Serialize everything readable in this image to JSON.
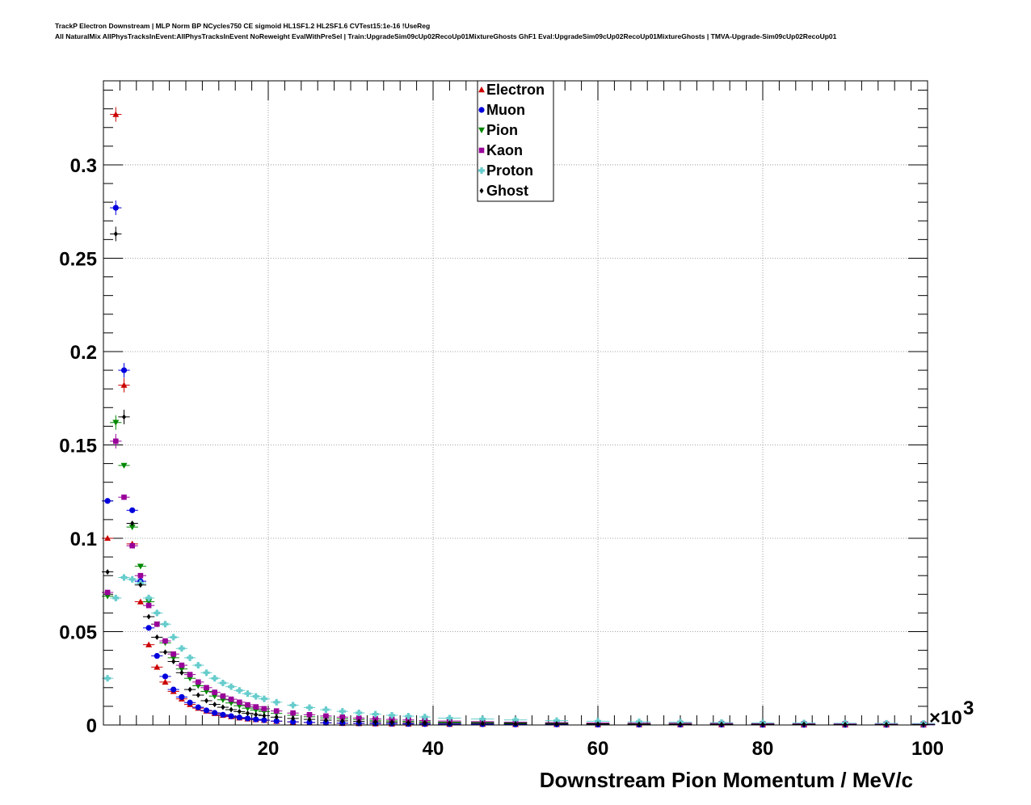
{
  "chart_data": {
    "type": "scatter",
    "title_lines": [
      "TrackP Electron Downstream | MLP Norm BP NCycles750 CE sigmoid HL1SF1.2 HL2SF1.6 CVTest15:1e-16 !UseReg",
      "All NaturalMix AllPhysTracksInEvent:AllPhysTracksInEvent NoReweight EvalWithPreSel | Train:UpgradeSim09cUp02RecoUp01MixtureGhosts GhF1 Eval:UpgradeSim09cUp02RecoUp01MixtureGhosts | TMVA-Upgrade-Sim09cUp02RecoUp01"
    ],
    "xlabel": "Downstream Pion Momentum / MeV/c",
    "ylabel": "",
    "x_multiplier": "×10",
    "x_multiplier_exp": "3",
    "xlim": [
      0,
      100
    ],
    "ylim": [
      0,
      0.345
    ],
    "x_ticks": [
      {
        "value": 20,
        "label": "20"
      },
      {
        "value": 40,
        "label": "40"
      },
      {
        "value": 60,
        "label": "60"
      },
      {
        "value": 80,
        "label": "80"
      },
      {
        "value": 100,
        "label": "100"
      }
    ],
    "y_ticks": [
      {
        "value": 0,
        "label": "0"
      },
      {
        "value": 0.05,
        "label": "0.05"
      },
      {
        "value": 0.1,
        "label": "0.1"
      },
      {
        "value": 0.15,
        "label": "0.15"
      },
      {
        "value": 0.2,
        "label": "0.2"
      },
      {
        "value": 0.25,
        "label": "0.25"
      },
      {
        "value": 0.3,
        "label": "0.3"
      }
    ],
    "grid": true,
    "legend_position": "top-center",
    "series": [
      {
        "name": "Electron",
        "color": "#cc0000",
        "marker": "triangle-up",
        "x": [
          0.5,
          1.5,
          2.5,
          3.5,
          4.5,
          5.5,
          6.5,
          7.5,
          8.5,
          9.5,
          10.5,
          11.5,
          12.5,
          13.5,
          14.5,
          15.5,
          16.5,
          17.5,
          18.5,
          19.5,
          21,
          23,
          25,
          27,
          29,
          31,
          33,
          35,
          37,
          39,
          42,
          46,
          50,
          55,
          60,
          65,
          70,
          75,
          80,
          85,
          90,
          95,
          99.5
        ],
        "y": [
          0.1,
          0.327,
          0.182,
          0.097,
          0.066,
          0.043,
          0.031,
          0.023,
          0.018,
          0.014,
          0.011,
          0.009,
          0.0075,
          0.0062,
          0.0052,
          0.0045,
          0.0038,
          0.0033,
          0.0029,
          0.0025,
          0.002,
          0.0016,
          0.0013,
          0.0011,
          0.0009,
          0.0008,
          0.0007,
          0.0006,
          0.0005,
          0.0005,
          0.0004,
          0.0004,
          0.0003,
          0.0003,
          0.0002,
          0.0002,
          0.0002,
          0.0002,
          0.0001,
          0.0001,
          0.0001,
          0.0001,
          0.0001
        ]
      },
      {
        "name": "Muon",
        "color": "#0000dd",
        "marker": "circle",
        "x": [
          0.5,
          1.5,
          2.5,
          3.5,
          4.5,
          5.5,
          6.5,
          7.5,
          8.5,
          9.5,
          10.5,
          11.5,
          12.5,
          13.5,
          14.5,
          15.5,
          16.5,
          17.5,
          18.5,
          19.5,
          21,
          23,
          25,
          27,
          29,
          31,
          33,
          35,
          37,
          39,
          42,
          46,
          50,
          55,
          60,
          65,
          70,
          75,
          80,
          85,
          90,
          95,
          99.5
        ],
        "y": [
          0.12,
          0.277,
          0.19,
          0.115,
          0.077,
          0.052,
          0.037,
          0.026,
          0.019,
          0.015,
          0.012,
          0.0095,
          0.0078,
          0.0065,
          0.0055,
          0.0047,
          0.004,
          0.0035,
          0.003,
          0.0026,
          0.0021,
          0.0017,
          0.0014,
          0.0012,
          0.001,
          0.0009,
          0.0008,
          0.0007,
          0.0006,
          0.0005,
          0.0005,
          0.0004,
          0.0003,
          0.0003,
          0.0002,
          0.0002,
          0.0002,
          0.0002,
          0.0001,
          0.0001,
          0.0001,
          0.0001,
          0.0001
        ]
      },
      {
        "name": "Pion",
        "color": "#008800",
        "marker": "triangle-down",
        "x": [
          0.5,
          1.5,
          2.5,
          3.5,
          4.5,
          5.5,
          6.5,
          7.5,
          8.5,
          9.5,
          10.5,
          11.5,
          12.5,
          13.5,
          14.5,
          15.5,
          16.5,
          17.5,
          18.5,
          19.5,
          21,
          23,
          25,
          27,
          29,
          31,
          33,
          35,
          37,
          39,
          42,
          46,
          50,
          55,
          60,
          65,
          70,
          75,
          80,
          85,
          90,
          95,
          99.5
        ],
        "y": [
          0.069,
          0.162,
          0.139,
          0.106,
          0.085,
          0.066,
          0.054,
          0.044,
          0.036,
          0.03,
          0.025,
          0.021,
          0.018,
          0.0155,
          0.0135,
          0.0118,
          0.0103,
          0.009,
          0.008,
          0.0072,
          0.0062,
          0.0052,
          0.0044,
          0.0038,
          0.0033,
          0.0029,
          0.0025,
          0.0022,
          0.002,
          0.0018,
          0.0015,
          0.0013,
          0.0011,
          0.0009,
          0.0008,
          0.0007,
          0.0006,
          0.0005,
          0.0005,
          0.0004,
          0.0004,
          0.0003,
          0.0003
        ]
      },
      {
        "name": "Kaon",
        "color": "#990099",
        "marker": "square",
        "x": [
          0.5,
          1.5,
          2.5,
          3.5,
          4.5,
          5.5,
          6.5,
          7.5,
          8.5,
          9.5,
          10.5,
          11.5,
          12.5,
          13.5,
          14.5,
          15.5,
          16.5,
          17.5,
          18.5,
          19.5,
          21,
          23,
          25,
          27,
          29,
          31,
          33,
          35,
          37,
          39,
          42,
          46,
          50,
          55,
          60,
          65,
          70,
          75,
          80,
          85,
          90,
          95,
          99.5
        ],
        "y": [
          0.071,
          0.152,
          0.122,
          0.096,
          0.08,
          0.064,
          0.054,
          0.045,
          0.038,
          0.032,
          0.027,
          0.023,
          0.02,
          0.0175,
          0.0155,
          0.0138,
          0.0122,
          0.0108,
          0.0097,
          0.0087,
          0.0075,
          0.0064,
          0.0055,
          0.0048,
          0.0042,
          0.0037,
          0.0033,
          0.003,
          0.0027,
          0.0024,
          0.0021,
          0.0018,
          0.0015,
          0.0013,
          0.0011,
          0.001,
          0.0009,
          0.0008,
          0.0007,
          0.0006,
          0.0006,
          0.0005,
          0.0005
        ]
      },
      {
        "name": "Proton",
        "color": "#66cccc",
        "marker": "cross",
        "x": [
          0.5,
          1.5,
          2.5,
          3.5,
          4.5,
          5.5,
          6.5,
          7.5,
          8.5,
          9.5,
          10.5,
          11.5,
          12.5,
          13.5,
          14.5,
          15.5,
          16.5,
          17.5,
          18.5,
          19.5,
          21,
          23,
          25,
          27,
          29,
          31,
          33,
          35,
          37,
          39,
          42,
          46,
          50,
          55,
          60,
          65,
          70,
          75,
          80,
          85,
          90,
          95,
          99.5
        ],
        "y": [
          0.025,
          0.068,
          0.079,
          0.078,
          0.076,
          0.068,
          0.06,
          0.054,
          0.047,
          0.041,
          0.036,
          0.032,
          0.028,
          0.025,
          0.0225,
          0.0205,
          0.0185,
          0.0168,
          0.0153,
          0.014,
          0.0122,
          0.0106,
          0.0093,
          0.0082,
          0.0073,
          0.0065,
          0.0058,
          0.0052,
          0.0047,
          0.0043,
          0.0037,
          0.0032,
          0.0027,
          0.0023,
          0.002,
          0.0017,
          0.0015,
          0.0013,
          0.0012,
          0.0011,
          0.001,
          0.0009,
          0.0008
        ]
      },
      {
        "name": "Ghost",
        "color": "#000000",
        "marker": "diamond",
        "x": [
          0.5,
          1.5,
          2.5,
          3.5,
          4.5,
          5.5,
          6.5,
          7.5,
          8.5,
          9.5,
          10.5,
          11.5,
          12.5,
          13.5,
          14.5,
          15.5,
          16.5,
          17.5,
          18.5,
          19.5,
          21,
          23,
          25,
          27,
          29,
          31,
          33,
          35,
          37,
          39,
          42,
          46,
          50,
          55,
          60,
          65,
          70,
          75,
          80,
          85,
          90,
          95,
          99.5
        ],
        "y": [
          0.082,
          0.263,
          0.165,
          0.108,
          0.075,
          0.058,
          0.047,
          0.039,
          0.034,
          0.028,
          0.019,
          0.016,
          0.013,
          0.011,
          0.0095,
          0.0082,
          0.0072,
          0.0063,
          0.0056,
          0.005,
          0.0042,
          0.0035,
          0.003,
          0.0026,
          0.0022,
          0.0019,
          0.0017,
          0.0015,
          0.0013,
          0.0012,
          0.001,
          0.0009,
          0.0007,
          0.0006,
          0.0005,
          0.0004,
          0.0004,
          0.0003,
          0.0003,
          0.0003,
          0.0002,
          0.0002,
          0.0002
        ]
      }
    ]
  }
}
